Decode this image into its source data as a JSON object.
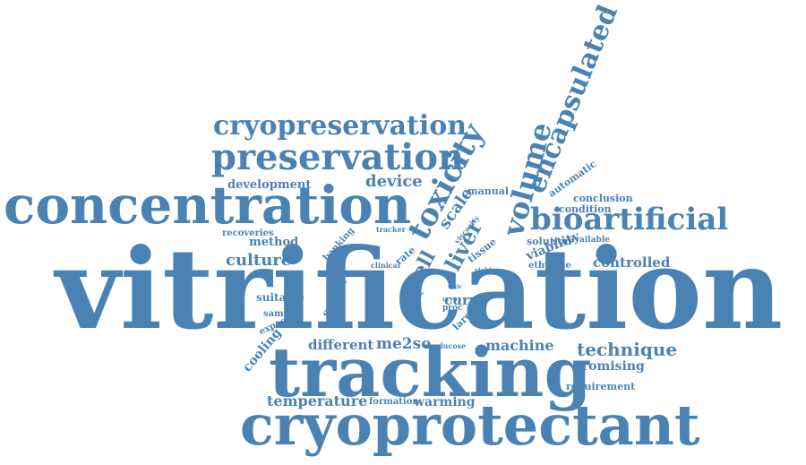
{
  "color": "#4a82b4",
  "words": {
    "vitrification": "vitrification",
    "tracking": "tracking",
    "cryoprotectant": "cryoprotectant",
    "concentration": "concentration",
    "preservation": "preservation",
    "cryopreservation": "cryopreservation",
    "encapsulated": "encapsulated",
    "volume": "volume",
    "toxicity": "toxicity",
    "bioartificial": "bioartificial",
    "liver": "liver",
    "cell": "cell",
    "scale": "scale",
    "device": "device",
    "development": "development",
    "culture": "culture",
    "method": "method",
    "recoveries": "recoveries",
    "banking": "banking",
    "technique": "technique",
    "machine": "machine",
    "different": "different",
    "me2so": "me2so",
    "temperature": "temperature",
    "warming": "warming",
    "formation": "formation",
    "promising": "promising",
    "requirement": "requirement",
    "controlled": "controlled",
    "solution": "solution",
    "available": "available",
    "ethylene": "ethylene",
    "viability": "viability",
    "condition": "condition",
    "conclusion": "conclusion",
    "automatic": "automatic",
    "manual": "manual",
    "viscosity": "viscosity",
    "tracker": "tracker",
    "rate": "rate",
    "clinical": "clinical",
    "tissue": "tissue",
    "curve": "curve",
    "larger": "larger",
    "proc": "proc",
    "cryo": "cryo",
    "toxic": "toxic",
    "viable": "viable",
    "glucose": "glucose",
    "result": "result",
    "point": "point",
    "suitable": "suitable",
    "sample": "sample",
    "exposure": "exposure",
    "cooling": "cooling",
    "system": "system"
  }
}
